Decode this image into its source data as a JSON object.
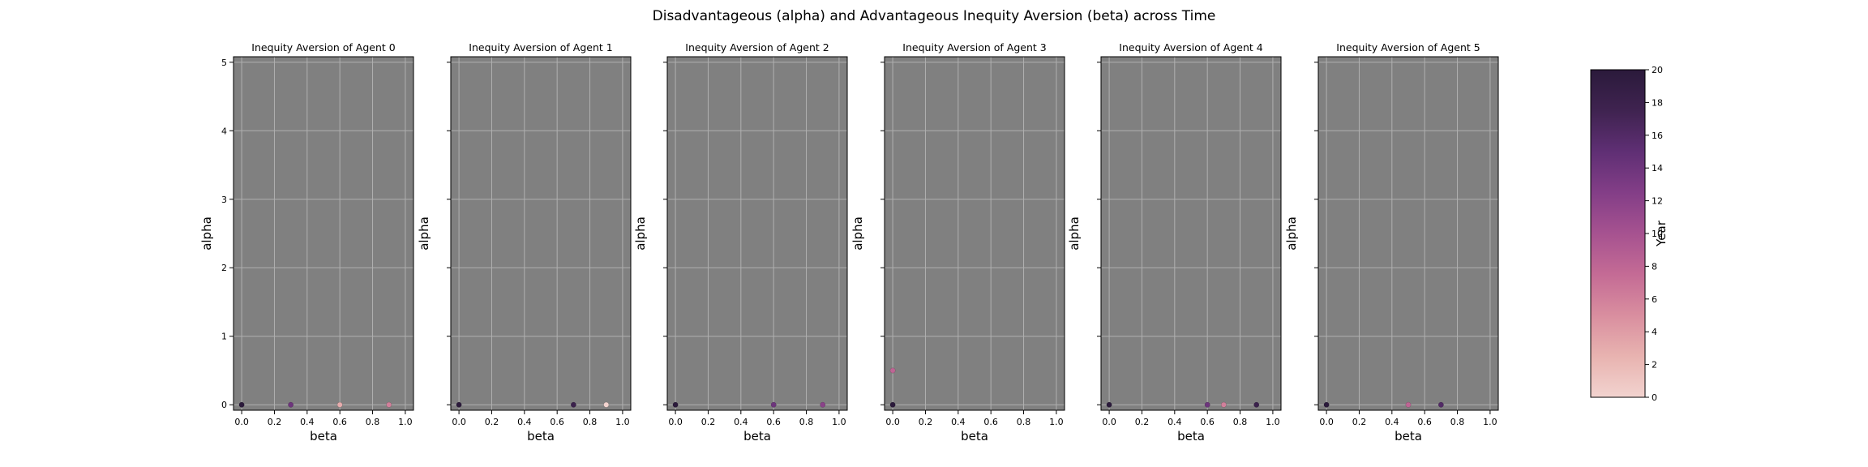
{
  "figure": {
    "suptitle": "Disadvantageous (alpha) and Advantageous Inequity Aversion (beta) across Time"
  },
  "style": {
    "axes_bg": "#808080",
    "grid_color": "#b0b0b0",
    "cmap": [
      "#f2d3cf",
      "#e8b3b0",
      "#d98e9f",
      "#c46b95",
      "#a65290",
      "#833e87",
      "#5f2f74",
      "#3f2350",
      "#2b1a3b"
    ]
  },
  "colorbar": {
    "label": "Year",
    "min": 0,
    "max": 20,
    "ticks": [
      "0",
      "2",
      "4",
      "6",
      "8",
      "10",
      "12",
      "14",
      "16",
      "18",
      "20"
    ]
  },
  "chart_data": [
    {
      "type": "scatter",
      "title": "Inequity Aversion of Agent 0",
      "xlabel": "beta",
      "ylabel": "alpha",
      "xlim": [
        -0.05,
        1.05
      ],
      "ylim": [
        -0.08,
        5.08
      ],
      "xticks": [
        "0.0",
        "0.2",
        "0.4",
        "0.6",
        "0.8",
        "1.0"
      ],
      "yticks": [
        "0",
        "1",
        "2",
        "3",
        "4",
        "5"
      ],
      "grid": true,
      "points": [
        {
          "beta": 0.9,
          "alpha": 0.0,
          "year": 6
        },
        {
          "beta": 0.6,
          "alpha": 0.0,
          "year": 3
        },
        {
          "beta": 0.3,
          "alpha": 0.0,
          "year": 14
        },
        {
          "beta": 0.0,
          "alpha": 0.0,
          "year": 20
        }
      ]
    },
    {
      "type": "scatter",
      "title": "Inequity Aversion of Agent 1",
      "xlabel": "beta",
      "ylabel": "alpha",
      "xlim": [
        -0.05,
        1.05
      ],
      "ylim": [
        -0.08,
        5.08
      ],
      "xticks": [
        "0.0",
        "0.2",
        "0.4",
        "0.6",
        "0.8",
        "1.0"
      ],
      "yticks": [
        "0",
        "1",
        "2",
        "3",
        "4",
        "5"
      ],
      "grid": true,
      "points": [
        {
          "beta": 0.9,
          "alpha": 0.0,
          "year": 0
        },
        {
          "beta": 0.7,
          "alpha": 0.0,
          "year": 18
        },
        {
          "beta": 0.0,
          "alpha": 0.0,
          "year": 20
        }
      ]
    },
    {
      "type": "scatter",
      "title": "Inequity Aversion of Agent 2",
      "xlabel": "beta",
      "ylabel": "alpha",
      "xlim": [
        -0.05,
        1.05
      ],
      "ylim": [
        -0.08,
        5.08
      ],
      "xticks": [
        "0.0",
        "0.2",
        "0.4",
        "0.6",
        "0.8",
        "1.0"
      ],
      "yticks": [
        "0",
        "1",
        "2",
        "3",
        "4",
        "5"
      ],
      "grid": true,
      "points": [
        {
          "beta": 0.9,
          "alpha": 0.0,
          "year": 12
        },
        {
          "beta": 0.6,
          "alpha": 0.0,
          "year": 14
        },
        {
          "beta": 0.0,
          "alpha": 0.0,
          "year": 20
        }
      ]
    },
    {
      "type": "scatter",
      "title": "Inequity Aversion of Agent 3",
      "xlabel": "beta",
      "ylabel": "alpha",
      "xlim": [
        -0.05,
        1.05
      ],
      "ylim": [
        -0.08,
        5.08
      ],
      "xticks": [
        "0.0",
        "0.2",
        "0.4",
        "0.6",
        "0.8",
        "1.0"
      ],
      "yticks": [
        "0",
        "1",
        "2",
        "3",
        "4",
        "5"
      ],
      "grid": true,
      "points": [
        {
          "beta": 0.0,
          "alpha": 0.5,
          "year": 8
        },
        {
          "beta": 0.0,
          "alpha": 0.0,
          "year": 20
        }
      ]
    },
    {
      "type": "scatter",
      "title": "Inequity Aversion of Agent 4",
      "xlabel": "beta",
      "ylabel": "alpha",
      "xlim": [
        -0.05,
        1.05
      ],
      "ylim": [
        -0.08,
        5.08
      ],
      "xticks": [
        "0.0",
        "0.2",
        "0.4",
        "0.6",
        "0.8",
        "1.0"
      ],
      "yticks": [
        "0",
        "1",
        "2",
        "3",
        "4",
        "5"
      ],
      "grid": true,
      "points": [
        {
          "beta": 0.7,
          "alpha": 0.0,
          "year": 6
        },
        {
          "beta": 0.6,
          "alpha": 0.0,
          "year": 14
        },
        {
          "beta": 0.9,
          "alpha": 0.0,
          "year": 18
        },
        {
          "beta": 0.0,
          "alpha": 0.0,
          "year": 20
        }
      ]
    },
    {
      "type": "scatter",
      "title": "Inequity Aversion of Agent 5",
      "xlabel": "beta",
      "ylabel": "alpha",
      "xlim": [
        -0.05,
        1.05
      ],
      "ylim": [
        -0.08,
        5.08
      ],
      "xticks": [
        "0.0",
        "0.2",
        "0.4",
        "0.6",
        "0.8",
        "1.0"
      ],
      "yticks": [
        "0",
        "1",
        "2",
        "3",
        "4",
        "5"
      ],
      "grid": true,
      "points": [
        {
          "beta": 0.5,
          "alpha": 0.0,
          "year": 8
        },
        {
          "beta": 0.7,
          "alpha": 0.0,
          "year": 16
        },
        {
          "beta": 0.0,
          "alpha": 0.0,
          "year": 20
        }
      ]
    }
  ]
}
